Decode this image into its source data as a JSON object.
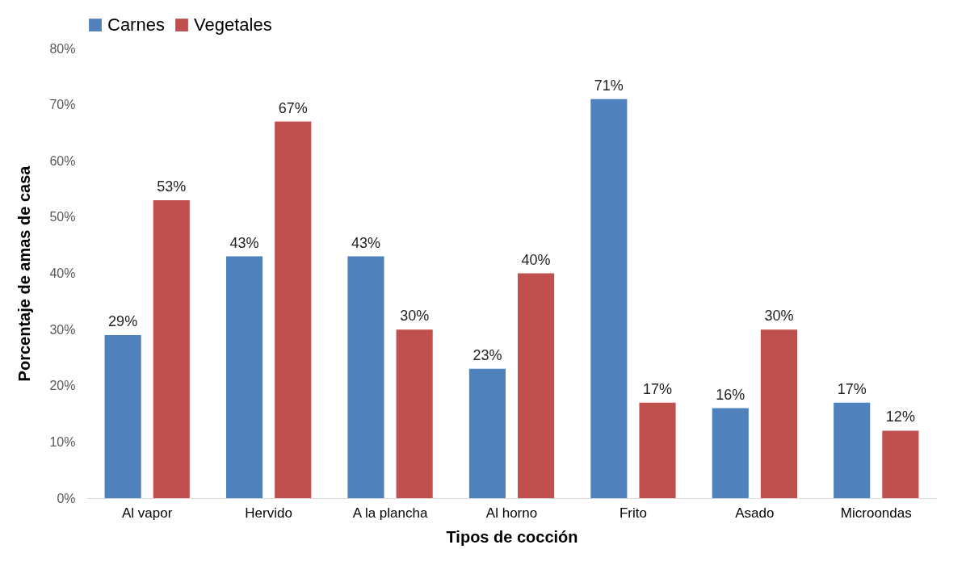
{
  "chart_data": {
    "type": "bar",
    "xlabel": "Tipos de cocción",
    "ylabel": "Porcentaje de amas de casa",
    "categories": [
      "Al vapor",
      "Hervido",
      "A la plancha",
      "Al horno",
      "Frito",
      "Asado",
      "Microondas"
    ],
    "series": [
      {
        "name": "Carnes",
        "color": "#4f81bd",
        "values": [
          29,
          43,
          43,
          23,
          71,
          16,
          17
        ],
        "value_labels": [
          "29%",
          "43%",
          "43%",
          "23%",
          "71%",
          "16%",
          "17%"
        ]
      },
      {
        "name": "Vegetales",
        "color": "#c0504d",
        "values": [
          53,
          67,
          30,
          40,
          17,
          30,
          12
        ],
        "value_labels": [
          "53%",
          "67%",
          "30%",
          "40%",
          "17%",
          "30%",
          "12%"
        ]
      }
    ],
    "ylim": [
      0,
      80
    ],
    "yticks": [
      {
        "value": 0,
        "label": "0%"
      },
      {
        "value": 10,
        "label": "10%"
      },
      {
        "value": 20,
        "label": "20%"
      },
      {
        "value": 30,
        "label": "30%"
      },
      {
        "value": 40,
        "label": "40%"
      },
      {
        "value": 50,
        "label": "50%"
      },
      {
        "value": 60,
        "label": "60%"
      },
      {
        "value": 70,
        "label": "70%"
      },
      {
        "value": 80,
        "label": "80%"
      }
    ],
    "grid": false,
    "legend": "top"
  }
}
